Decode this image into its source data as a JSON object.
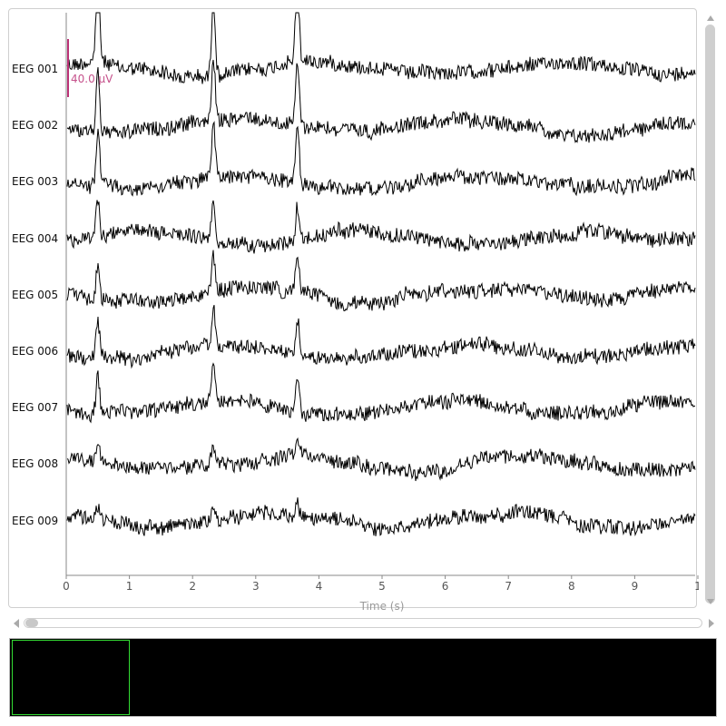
{
  "plot": {
    "xlabel": "Time (s)",
    "xticks": [
      "0",
      "1",
      "2",
      "3",
      "4",
      "5",
      "6",
      "7",
      "8",
      "9",
      "1"
    ],
    "scale_bar_label": "40.0 µV",
    "colors": {
      "trace": "#000000",
      "scale_bar": "#bb3377",
      "axis": "#888888"
    }
  },
  "channels": [
    "EEG 001",
    "EEG 002",
    "EEG 003",
    "EEG 004",
    "EEG 005",
    "EEG 006",
    "EEG 007",
    "EEG 008",
    "EEG 009"
  ],
  "overview": {
    "window_color": "#33dd33",
    "background": "#000000"
  },
  "icons": {
    "vscroll_up": "triangle-up-icon",
    "vscroll_down": "triangle-down-icon",
    "hscroll_left": "triangle-left-icon",
    "hscroll_right": "triangle-right-icon"
  }
}
